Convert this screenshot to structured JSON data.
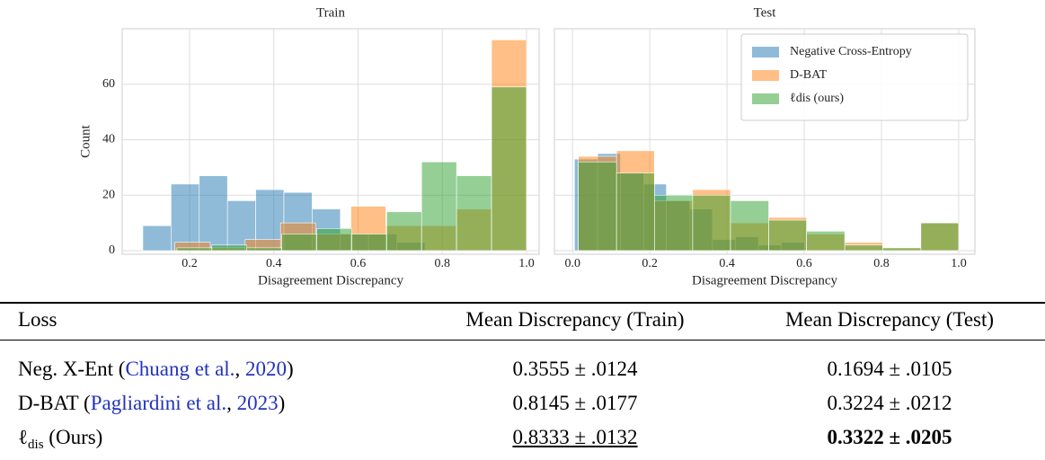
{
  "chart_data": [
    {
      "type": "histogram",
      "title": "Train",
      "xlabel": "Disagreement Discrepancy",
      "ylabel": "Count",
      "xlim": [
        0.04,
        1.03
      ],
      "ylim": [
        -1.3,
        80
      ],
      "xticks": [
        0.2,
        0.4,
        0.6,
        0.8,
        {
          "value": 1.0,
          "label": "1.0"
        }
      ],
      "yticks": [
        0,
        20,
        40,
        60
      ],
      "grid": true,
      "opacity": 0.5,
      "series": [
        {
          "name": "Negative Cross-Entropy",
          "color": "#1f77b4",
          "bins": [
            0.089,
            0.156,
            0.223,
            0.29,
            0.357,
            0.424,
            0.491,
            0.558,
            0.625,
            0.692,
            0.759
          ],
          "values": [
            9,
            24,
            27,
            18,
            22,
            21,
            15,
            6,
            6,
            3
          ]
        },
        {
          "name": "D-BAT",
          "color": "#ff7f0e",
          "bins": [
            0.165,
            0.249,
            0.332,
            0.416,
            0.499,
            0.583,
            0.666,
            0.75,
            0.833,
            0.917,
            1.0
          ],
          "values": [
            3,
            1,
            4,
            10,
            6,
            16,
            9,
            9,
            15,
            76
          ]
        },
        {
          "name": "ℓdis (ours)",
          "color": "#2ca02c",
          "bins": [
            0.17,
            0.253,
            0.336,
            0.419,
            0.502,
            0.585,
            0.668,
            0.751,
            0.834,
            0.917,
            1.0
          ],
          "values": [
            1,
            2,
            1,
            6,
            8,
            6,
            14,
            32,
            27,
            59
          ]
        }
      ]
    },
    {
      "type": "histogram",
      "title": "Test",
      "xlabel": "Disagreement Discrepancy",
      "xlim": [
        -0.047,
        1.042
      ],
      "ylim": [
        -1.3,
        80
      ],
      "xticks": [
        {
          "value": 0.0,
          "label": "0.0"
        },
        0.2,
        0.4,
        0.6,
        0.8,
        {
          "value": 1.0,
          "label": "1.0"
        }
      ],
      "yticks": [
        0,
        20,
        40,
        60
      ],
      "grid": true,
      "sharey": true,
      "opacity": 0.5,
      "legend": "upper right",
      "series": [
        {
          "name": "Negative Cross-Entropy",
          "color": "#1f77b4",
          "bins": [
            0.005,
            0.065,
            0.124,
            0.184,
            0.243,
            0.303,
            0.362,
            0.422,
            0.481,
            0.541,
            0.6
          ],
          "values": [
            33,
            35,
            28,
            24,
            18,
            15,
            4,
            5,
            2,
            3
          ]
        },
        {
          "name": "D-BAT",
          "color": "#ff7f0e",
          "bins": [
            0.015,
            0.114,
            0.212,
            0.311,
            0.409,
            0.508,
            0.606,
            0.705,
            0.803,
            0.902,
            1.0
          ],
          "values": [
            34,
            36,
            18,
            22,
            10,
            12,
            6,
            3,
            1,
            10
          ]
        },
        {
          "name": "ℓdis (ours)",
          "color": "#2ca02c",
          "bins": [
            0.015,
            0.114,
            0.212,
            0.311,
            0.409,
            0.508,
            0.606,
            0.705,
            0.803,
            0.902,
            1.0
          ],
          "values": [
            32,
            28,
            20,
            20,
            18,
            11,
            7,
            2,
            1,
            10
          ]
        }
      ]
    }
  ],
  "table": {
    "header": [
      "Loss",
      "Mean Discrepancy (Train)",
      "Mean Discrepancy (Test)"
    ],
    "rows": [
      {
        "loss": [
          {
            "text": "Neg. X-Ent ("
          },
          {
            "text": "Chuang et al.",
            "style": "link"
          },
          {
            "text": ", "
          },
          {
            "text": "2020",
            "style": "link"
          },
          {
            "text": ")"
          }
        ],
        "train": {
          "text": "0.3555 ± .0124"
        },
        "test": {
          "text": "0.1694 ± .0105"
        }
      },
      {
        "loss": [
          {
            "text": "D-BAT ("
          },
          {
            "text": "Pagliardini et al.",
            "style": "link"
          },
          {
            "text": ", "
          },
          {
            "text": "2023",
            "style": "link"
          },
          {
            "text": ")"
          }
        ],
        "train": {
          "text": "0.8145 ± .0177"
        },
        "test": {
          "text": "0.3224 ± .0212"
        }
      },
      {
        "loss": [
          {
            "text": "ℓ"
          },
          {
            "text": "dis",
            "style": "sub"
          },
          {
            "text": " (Ours)"
          }
        ],
        "train": {
          "text": "0.8333 ± .0132",
          "style": "underline"
        },
        "test": {
          "text": "0.3322 ± .0205",
          "style": "bold"
        }
      }
    ]
  }
}
